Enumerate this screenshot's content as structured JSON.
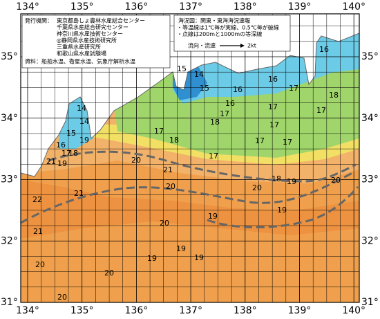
{
  "axes": {
    "longitude": [
      "134°",
      "135°",
      "136°",
      "137°",
      "138°",
      "139°",
      "140°"
    ],
    "latitude": [
      "35°",
      "34°",
      "33°",
      "32°",
      "31°"
    ]
  },
  "publisher_box": {
    "heading": "発行機関：",
    "lines": [
      "東京都島しょ農林水産総合センター",
      "千葉県水産総合研究センター",
      "神奈川県水産技術センター",
      "◎静岡県水産技術研究所",
      "三重県水産研究所",
      "和歌山県水産試験場"
    ],
    "source": "資料：船舶水温、衛星水温、気象庁解析水温"
  },
  "legend_box": {
    "title": "海況図：関東・東海海況速報",
    "notes": [
      "・等温線は1℃毎が実線、0.5℃毎が破線",
      "・点線は200mと1000mの等深線"
    ],
    "current_label": "流向・流速",
    "speed_label": "2kt"
  },
  "isotherm_labels": [
    "15",
    "14",
    "15",
    "16",
    "16",
    "16",
    "17",
    "18",
    "16",
    "17",
    "17",
    "17",
    "18",
    "17",
    "18",
    "17",
    "17",
    "17",
    "17",
    "14",
    "14",
    "15",
    "19",
    "16",
    "17",
    "18",
    "19",
    "20",
    "21",
    "21",
    "20",
    "21",
    "22",
    "20",
    "18",
    "19",
    "20",
    "19",
    "21",
    "20",
    "19",
    "19",
    "19",
    "20",
    "20",
    "20",
    "19"
  ]
}
